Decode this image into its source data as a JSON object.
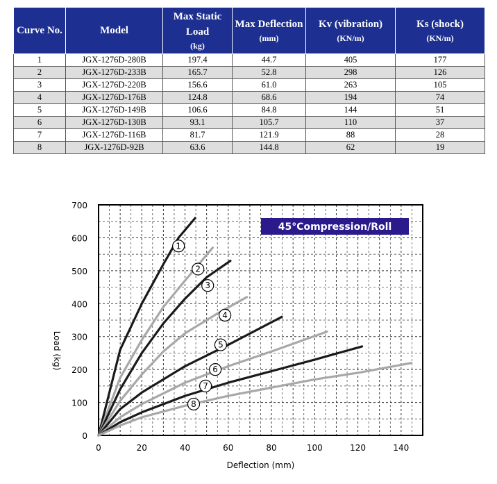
{
  "table": {
    "headers": [
      {
        "main": "Curve No.",
        "unit": ""
      },
      {
        "main": "Model",
        "unit": ""
      },
      {
        "main": "Max Static Load",
        "unit": "(kg)"
      },
      {
        "main": "Max Deflection",
        "unit": "(mm)"
      },
      {
        "main": "Kv (vibration)",
        "unit": "(KN/m)"
      },
      {
        "main": "Ks (shock)",
        "unit": "(KN/m)"
      }
    ],
    "rows": [
      [
        "1",
        "JGX-1276D-280B",
        "197.4",
        "44.7",
        "405",
        "177"
      ],
      [
        "2",
        "JGX-1276D-233B",
        "165.7",
        "52.8",
        "298",
        "126"
      ],
      [
        "3",
        "JGX-1276D-220B",
        "156.6",
        "61.0",
        "263",
        "105"
      ],
      [
        "4",
        "JGX-1276D-176B",
        "124.8",
        "68.6",
        "194",
        "74"
      ],
      [
        "5",
        "JGX-1276D-149B",
        "106.6",
        "84.8",
        "144",
        "51"
      ],
      [
        "6",
        "JGX-1276D-130B",
        "93.1",
        "105.7",
        "110",
        "37"
      ],
      [
        "7",
        "JGX-1276D-116B",
        "81.7",
        "121.9",
        "88",
        "28"
      ],
      [
        "8",
        "JGX-1276D-92B",
        "63.6",
        "144.8",
        "62",
        "19"
      ]
    ]
  },
  "chart_data": {
    "type": "line",
    "title": "45°Compression/Roll",
    "xlabel": "Deflection (mm)",
    "ylabel": "Load (kg)",
    "xlim": [
      0,
      150
    ],
    "ylim": [
      0,
      700
    ],
    "xticks": [
      "0",
      "20",
      "40",
      "60",
      "80",
      "100",
      "120",
      "140"
    ],
    "yticks": [
      "0",
      "100",
      "200",
      "300",
      "400",
      "500",
      "600",
      "700"
    ],
    "grid": true,
    "colors": {
      "dark": "#1a1a1a",
      "light": "#a8a8a8",
      "title_bg": "#2a1a8c"
    },
    "series": [
      {
        "label": "1",
        "color": "dark",
        "x": [
          0,
          10,
          20,
          30,
          37,
          44.7
        ],
        "y": [
          0,
          260,
          400,
          520,
          600,
          660
        ]
      },
      {
        "label": "2",
        "color": "light",
        "x": [
          0,
          10,
          20,
          30,
          40,
          52.8
        ],
        "y": [
          0,
          175,
          290,
          390,
          470,
          570
        ]
      },
      {
        "label": "3",
        "color": "dark",
        "x": [
          0,
          10,
          20,
          30,
          40,
          50,
          61
        ],
        "y": [
          0,
          140,
          250,
          340,
          415,
          480,
          530
        ]
      },
      {
        "label": "4",
        "color": "light",
        "x": [
          0,
          10,
          20,
          30,
          40,
          55,
          68.6
        ],
        "y": [
          0,
          105,
          185,
          255,
          310,
          370,
          420
        ]
      },
      {
        "label": "5",
        "color": "dark",
        "x": [
          0,
          10,
          20,
          40,
          60,
          84.8
        ],
        "y": [
          0,
          80,
          130,
          210,
          275,
          360
        ]
      },
      {
        "label": "6",
        "color": "light",
        "x": [
          0,
          10,
          20,
          40,
          60,
          80,
          105.7
        ],
        "y": [
          0,
          55,
          95,
          160,
          210,
          255,
          315
        ]
      },
      {
        "label": "7",
        "color": "dark",
        "x": [
          0,
          10,
          20,
          40,
          60,
          80,
          100,
          121.9
        ],
        "y": [
          0,
          40,
          70,
          120,
          160,
          195,
          230,
          270
        ]
      },
      {
        "label": "8",
        "color": "light",
        "x": [
          0,
          10,
          20,
          40,
          60,
          80,
          100,
          120,
          144.8
        ],
        "y": [
          0,
          30,
          55,
          90,
          120,
          145,
          170,
          190,
          220
        ]
      }
    ],
    "label_positions": [
      {
        "label": "1",
        "x": 37,
        "y": 575
      },
      {
        "label": "2",
        "x": 46,
        "y": 505
      },
      {
        "label": "3",
        "x": 50.5,
        "y": 455
      },
      {
        "label": "4",
        "x": 58.5,
        "y": 365
      },
      {
        "label": "5",
        "x": 56.5,
        "y": 275
      },
      {
        "label": "6",
        "x": 54,
        "y": 200
      },
      {
        "label": "7",
        "x": 49.5,
        "y": 150
      },
      {
        "label": "8",
        "x": 44,
        "y": 95
      }
    ]
  }
}
